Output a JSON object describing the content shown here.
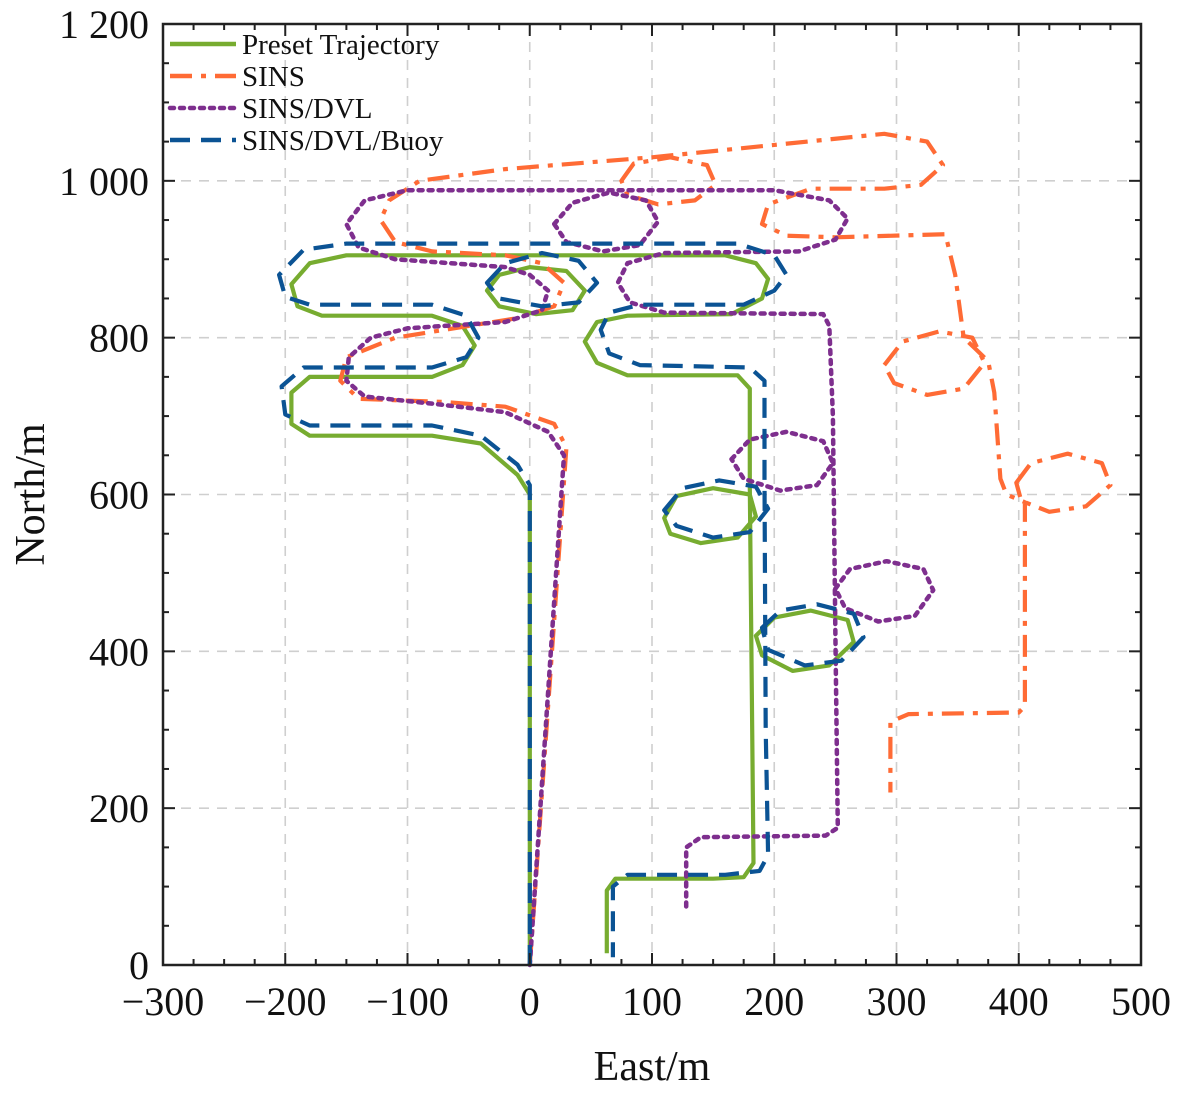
{
  "chart_data": {
    "type": "line",
    "title": "",
    "xlabel": "East/m",
    "ylabel": "North/m",
    "xlim": [
      -300,
      500
    ],
    "ylim": [
      0,
      1200
    ],
    "grid": true,
    "legend_position": "top-left",
    "xticks": [
      -300,
      -200,
      -100,
      0,
      100,
      200,
      300,
      400,
      500
    ],
    "xtick_labels": [
      "−300",
      "−200",
      "−100",
      "0",
      "100",
      "200",
      "300",
      "400",
      "500"
    ],
    "yticks": [
      0,
      200,
      400,
      600,
      800,
      1000,
      1200
    ],
    "ytick_labels": [
      "0",
      "200",
      "400",
      "600",
      "800",
      "1 000",
      "1 200"
    ],
    "series": [
      {
        "name": "Preset Trajectory",
        "color": "#77ac30",
        "style": "solid",
        "points": [
          [
            0,
            0
          ],
          [
            0,
            600
          ],
          [
            -10,
            625
          ],
          [
            -40,
            665
          ],
          [
            -80,
            675
          ],
          [
            -180,
            675
          ],
          [
            -195,
            690
          ],
          [
            -195,
            730
          ],
          [
            -180,
            750
          ],
          [
            -80,
            750
          ],
          [
            -55,
            765
          ],
          [
            -45,
            790
          ],
          [
            -55,
            815
          ],
          [
            -80,
            828
          ],
          [
            -170,
            828
          ],
          [
            -190,
            840
          ],
          [
            -195,
            868
          ],
          [
            -180,
            895
          ],
          [
            -150,
            905
          ],
          [
            160,
            905
          ],
          [
            185,
            895
          ],
          [
            195,
            875
          ],
          [
            190,
            850
          ],
          [
            165,
            830
          ],
          [
            80,
            828
          ],
          [
            55,
            820
          ],
          [
            45,
            795
          ],
          [
            55,
            768
          ],
          [
            80,
            752
          ],
          [
            170,
            752
          ],
          [
            180,
            735
          ],
          [
            180,
            610
          ],
          [
            182,
            300
          ],
          [
            183,
            130
          ],
          [
            175,
            112
          ],
          [
            150,
            110
          ],
          [
            70,
            110
          ],
          [
            63,
            95
          ],
          [
            63,
            15
          ]
        ]
      },
      {
        "name": "Preset Trajectory loop 1",
        "color": "#77ac30",
        "style": "solid",
        "closed": true,
        "points": [
          [
            -35,
            860
          ],
          [
            -25,
            880
          ],
          [
            0,
            890
          ],
          [
            30,
            885
          ],
          [
            45,
            860
          ],
          [
            35,
            835
          ],
          [
            5,
            830
          ],
          [
            -25,
            840
          ]
        ]
      },
      {
        "name": "Preset Trajectory loop 2",
        "color": "#77ac30",
        "style": "solid",
        "closed": true,
        "points": [
          [
            110,
            570
          ],
          [
            120,
            598
          ],
          [
            150,
            608
          ],
          [
            180,
            600
          ],
          [
            185,
            572
          ],
          [
            170,
            545
          ],
          [
            140,
            538
          ],
          [
            115,
            550
          ]
        ]
      },
      {
        "name": "Preset Trajectory loop 3",
        "color": "#77ac30",
        "style": "solid",
        "closed": true,
        "points": [
          [
            185,
            420
          ],
          [
            200,
            443
          ],
          [
            230,
            452
          ],
          [
            260,
            440
          ],
          [
            265,
            412
          ],
          [
            245,
            382
          ],
          [
            215,
            375
          ],
          [
            190,
            395
          ]
        ]
      },
      {
        "name": "SINS",
        "color": "#ff6b35",
        "style": "dashdot",
        "points": [
          [
            0,
            0
          ],
          [
            30,
            660
          ],
          [
            20,
            690
          ],
          [
            -20,
            712
          ],
          [
            -70,
            718
          ],
          [
            -140,
            722
          ],
          [
            -155,
            745
          ],
          [
            -150,
            775
          ],
          [
            -110,
            800
          ],
          [
            -10,
            825
          ],
          [
            20,
            840
          ],
          [
            28,
            870
          ],
          [
            10,
            895
          ],
          [
            -20,
            905
          ],
          [
            -80,
            910
          ],
          [
            -110,
            922
          ],
          [
            -122,
            950
          ],
          [
            -115,
            975
          ],
          [
            -90,
            1000
          ],
          [
            -20,
            1015
          ],
          [
            100,
            1030
          ],
          [
            290,
            1060
          ],
          [
            325,
            1050
          ],
          [
            338,
            1020
          ],
          [
            320,
            995
          ],
          [
            290,
            990
          ],
          [
            230,
            990
          ],
          [
            195,
            970
          ],
          [
            190,
            945
          ],
          [
            210,
            930
          ],
          [
            250,
            928
          ],
          [
            340,
            932
          ],
          [
            348,
            880
          ],
          [
            355,
            800
          ],
          [
            365,
            785
          ],
          [
            375,
            770
          ],
          [
            380,
            730
          ],
          [
            385,
            620
          ],
          [
            390,
            600
          ],
          [
            405,
            590
          ],
          [
            405,
            330
          ],
          [
            400,
            322
          ],
          [
            310,
            320
          ],
          [
            295,
            310
          ],
          [
            295,
            220
          ]
        ]
      },
      {
        "name": "SINS loop 1",
        "color": "#ff6b35",
        "style": "dashdot",
        "closed": true,
        "points": [
          [
            75,
            1000
          ],
          [
            85,
            1022
          ],
          [
            115,
            1030
          ],
          [
            145,
            1020
          ],
          [
            152,
            995
          ],
          [
            135,
            975
          ],
          [
            105,
            970
          ],
          [
            80,
            982
          ]
        ]
      },
      {
        "name": "SINS loop 2",
        "color": "#ff6b35",
        "style": "dashdot",
        "closed": true,
        "points": [
          [
            290,
            765
          ],
          [
            305,
            795
          ],
          [
            335,
            808
          ],
          [
            362,
            800
          ],
          [
            372,
            768
          ],
          [
            355,
            735
          ],
          [
            325,
            727
          ],
          [
            298,
            742
          ]
        ]
      },
      {
        "name": "SINS loop 3",
        "color": "#ff6b35",
        "style": "dashdot",
        "closed": true,
        "points": [
          [
            398,
            615
          ],
          [
            410,
            640
          ],
          [
            440,
            652
          ],
          [
            468,
            640
          ],
          [
            475,
            612
          ],
          [
            455,
            585
          ],
          [
            425,
            578
          ],
          [
            402,
            592
          ]
        ]
      },
      {
        "name": "SINS/DVL",
        "color": "#7e2f8e",
        "style": "dotted",
        "points": [
          [
            0,
            0
          ],
          [
            28,
            650
          ],
          [
            15,
            680
          ],
          [
            -20,
            705
          ],
          [
            -75,
            715
          ],
          [
            -135,
            725
          ],
          [
            -150,
            745
          ],
          [
            -148,
            775
          ],
          [
            -130,
            800
          ],
          [
            -100,
            812
          ],
          [
            -20,
            820
          ],
          [
            10,
            835
          ],
          [
            15,
            860
          ],
          [
            0,
            880
          ],
          [
            -20,
            890
          ],
          [
            -110,
            900
          ],
          [
            -140,
            915
          ],
          [
            -150,
            945
          ],
          [
            -135,
            975
          ],
          [
            -100,
            988
          ],
          [
            200,
            988
          ],
          [
            245,
            975
          ],
          [
            260,
            952
          ],
          [
            250,
            925
          ],
          [
            220,
            910
          ],
          [
            110,
            908
          ],
          [
            80,
            895
          ],
          [
            72,
            870
          ],
          [
            82,
            845
          ],
          [
            110,
            832
          ],
          [
            240,
            830
          ],
          [
            245,
            815
          ],
          [
            248,
            700
          ],
          [
            250,
            420
          ],
          [
            252,
            175
          ],
          [
            242,
            165
          ],
          [
            140,
            163
          ],
          [
            128,
            150
          ],
          [
            128,
            70
          ]
        ]
      },
      {
        "name": "SINS/DVL loop 1",
        "color": "#7e2f8e",
        "style": "dotted",
        "closed": true,
        "points": [
          [
            20,
            945
          ],
          [
            35,
            972
          ],
          [
            65,
            985
          ],
          [
            95,
            975
          ],
          [
            105,
            948
          ],
          [
            90,
            918
          ],
          [
            60,
            910
          ],
          [
            30,
            922
          ]
        ]
      },
      {
        "name": "SINS/DVL loop 2",
        "color": "#7e2f8e",
        "style": "dotted",
        "closed": true,
        "points": [
          [
            165,
            645
          ],
          [
            180,
            670
          ],
          [
            210,
            680
          ],
          [
            240,
            668
          ],
          [
            248,
            640
          ],
          [
            235,
            612
          ],
          [
            205,
            605
          ],
          [
            175,
            620
          ]
        ]
      },
      {
        "name": "SINS/DVL loop 3",
        "color": "#7e2f8e",
        "style": "dotted",
        "closed": true,
        "points": [
          [
            250,
            480
          ],
          [
            262,
            505
          ],
          [
            292,
            515
          ],
          [
            322,
            505
          ],
          [
            330,
            478
          ],
          [
            315,
            445
          ],
          [
            285,
            438
          ],
          [
            258,
            455
          ]
        ]
      },
      {
        "name": "SINS/DVL/Buoy",
        "color": "#0b5394",
        "style": "dashed",
        "points": [
          [
            0,
            0
          ],
          [
            0,
            612
          ],
          [
            -10,
            638
          ],
          [
            -40,
            675
          ],
          [
            -80,
            688
          ],
          [
            -180,
            688
          ],
          [
            -200,
            702
          ],
          [
            -203,
            738
          ],
          [
            -185,
            762
          ],
          [
            -80,
            762
          ],
          [
            -52,
            775
          ],
          [
            -42,
            800
          ],
          [
            -52,
            828
          ],
          [
            -80,
            842
          ],
          [
            -180,
            842
          ],
          [
            -200,
            852
          ],
          [
            -205,
            880
          ],
          [
            -185,
            912
          ],
          [
            -150,
            920
          ],
          [
            170,
            920
          ],
          [
            200,
            905
          ],
          [
            210,
            880
          ],
          [
            200,
            860
          ],
          [
            175,
            842
          ],
          [
            90,
            842
          ],
          [
            65,
            832
          ],
          [
            58,
            810
          ],
          [
            65,
            780
          ],
          [
            90,
            765
          ],
          [
            180,
            762
          ],
          [
            192,
            745
          ],
          [
            192,
            620
          ],
          [
            193,
            300
          ],
          [
            195,
            140
          ],
          [
            188,
            120
          ],
          [
            160,
            115
          ],
          [
            80,
            115
          ],
          [
            68,
            100
          ],
          [
            68,
            10
          ]
        ]
      },
      {
        "name": "SINS/DVL/Buoy loop 1",
        "color": "#0b5394",
        "style": "dashed",
        "closed": true,
        "points": [
          [
            -35,
            870
          ],
          [
            -20,
            895
          ],
          [
            10,
            908
          ],
          [
            40,
            898
          ],
          [
            55,
            870
          ],
          [
            40,
            845
          ],
          [
            10,
            840
          ],
          [
            -25,
            850
          ]
        ]
      },
      {
        "name": "SINS/DVL/Buoy loop 2",
        "color": "#0b5394",
        "style": "dashed",
        "closed": true,
        "points": [
          [
            110,
            580
          ],
          [
            125,
            608
          ],
          [
            155,
            618
          ],
          [
            185,
            610
          ],
          [
            195,
            582
          ],
          [
            180,
            552
          ],
          [
            150,
            545
          ],
          [
            120,
            560
          ]
        ]
      },
      {
        "name": "SINS/DVL/Buoy loop 3",
        "color": "#0b5394",
        "style": "dashed",
        "closed": true,
        "points": [
          [
            190,
            430
          ],
          [
            205,
            452
          ],
          [
            235,
            460
          ],
          [
            265,
            448
          ],
          [
            273,
            418
          ],
          [
            255,
            388
          ],
          [
            225,
            382
          ],
          [
            195,
            402
          ]
        ]
      }
    ],
    "legend": [
      {
        "label": "Preset Trajectory",
        "color": "#77ac30",
        "style": "solid"
      },
      {
        "label": "SINS",
        "color": "#ff6b35",
        "style": "dashdot"
      },
      {
        "label": "SINS/DVL",
        "color": "#7e2f8e",
        "style": "dotted"
      },
      {
        "label": "SINS/DVL/Buoy",
        "color": "#0b5394",
        "style": "dashed"
      }
    ]
  }
}
